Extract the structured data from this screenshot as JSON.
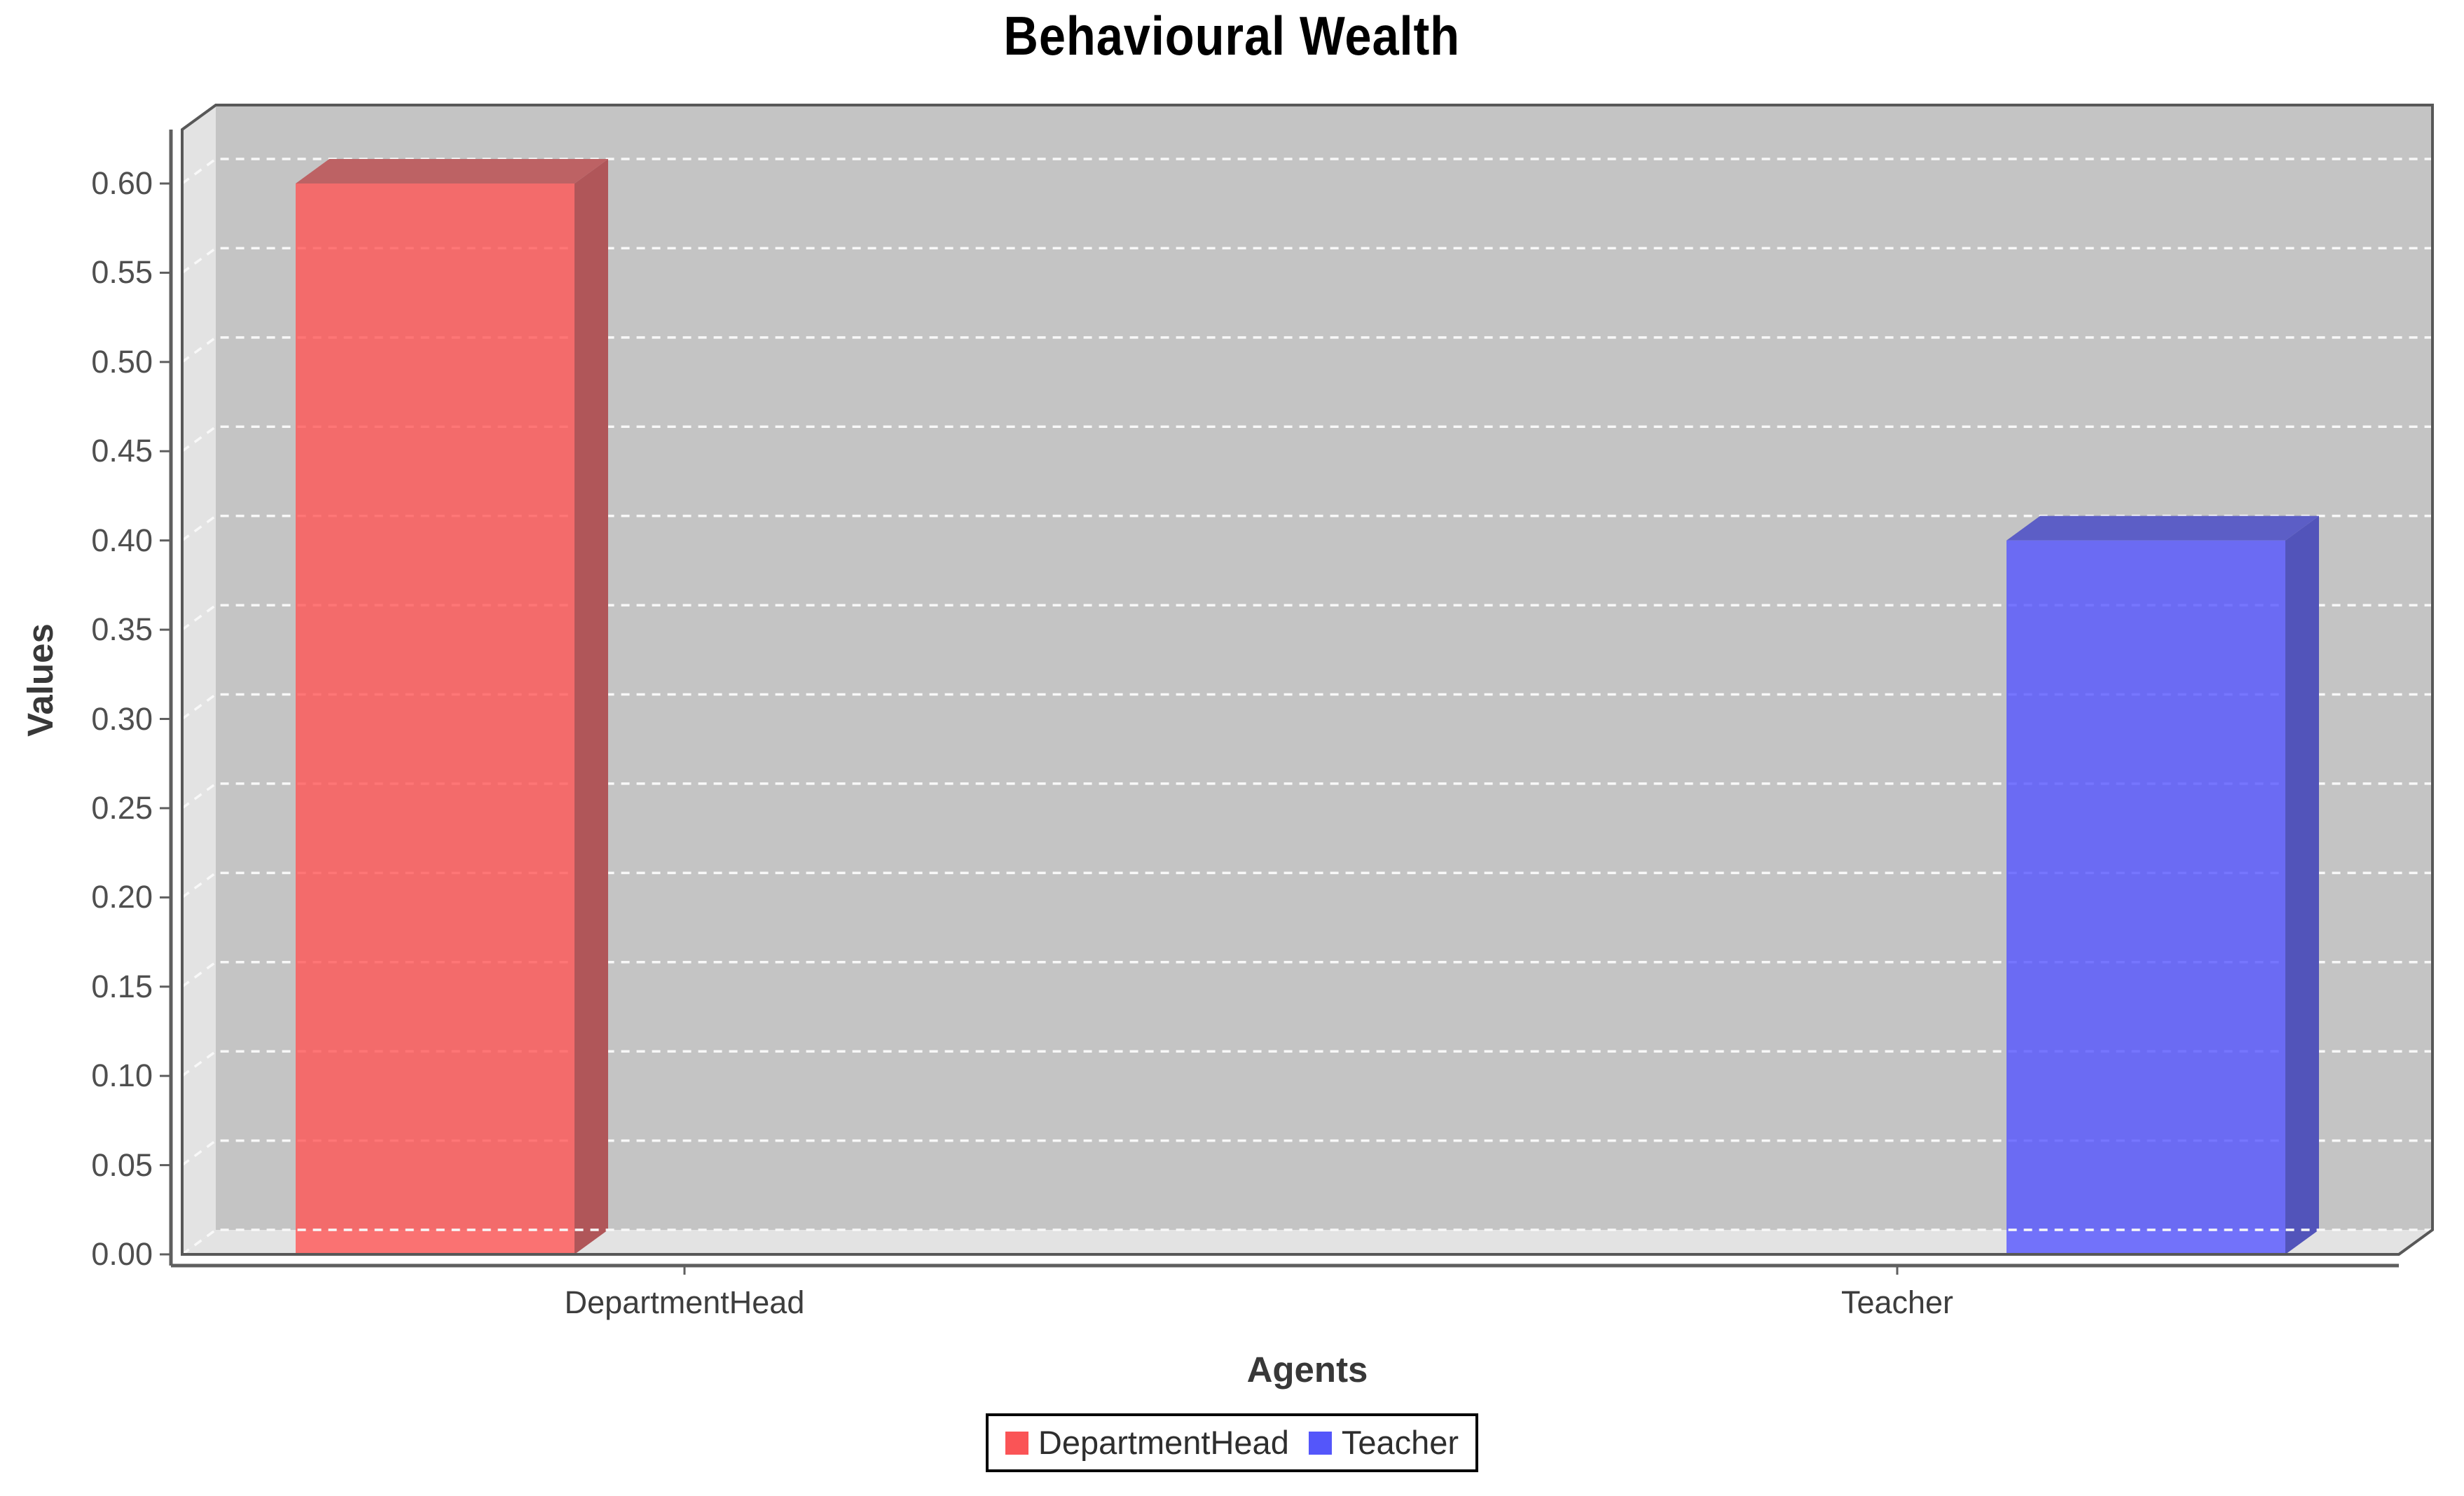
{
  "chart_data": {
    "type": "bar",
    "style": "3d",
    "title": "Behavioural Wealth",
    "xlabel": "Agents",
    "ylabel": "Values",
    "categories": [
      "DepartmentHead",
      "Teacher"
    ],
    "series": [
      {
        "name": "DepartmentHead",
        "values": [
          0.6,
          null
        ],
        "color": "#fa5456",
        "faces": {
          "front": "#ff5555",
          "front_opacity": 0.8,
          "top": "#bd6264",
          "side": "#b05659"
        }
      },
      {
        "name": "Teacher",
        "values": [
          null,
          0.4
        ],
        "color": "#5456fa",
        "faces": {
          "front": "#5555ff",
          "front_opacity": 0.8,
          "top": "#5c5ec6",
          "side": "#5254ba"
        }
      }
    ],
    "ylim": [
      0,
      0.6
    ],
    "ytick_step": 0.05,
    "ytick_labels": [
      "0.00",
      "0.05",
      "0.10",
      "0.15",
      "0.20",
      "0.25",
      "0.30",
      "0.35",
      "0.40",
      "0.45",
      "0.50",
      "0.55",
      "0.60"
    ],
    "grid": {
      "horizontal": true,
      "vertical": false,
      "line_style": "dashed",
      "color": "#f8f8f8"
    },
    "legend_position": "bottom"
  },
  "legend": {
    "items": [
      {
        "label": "DepartmentHead",
        "color": "#fa5456"
      },
      {
        "label": "Teacher",
        "color": "#5456fa"
      }
    ]
  },
  "colors": {
    "background": "#ffffff",
    "back_wall": "#c4c4c4",
    "side_wall": "#e3e3e3",
    "wall_outline": "#585858",
    "axis_line": "#5f5f5f",
    "grid_line": "#f8f8f8",
    "title_text": "#000000",
    "tick_text": "#4f4f4f",
    "category_text": "#3d3d3d",
    "axis_label_text": "#383838",
    "legend_text": "#2e2e2e",
    "legend_border": "#000000"
  }
}
